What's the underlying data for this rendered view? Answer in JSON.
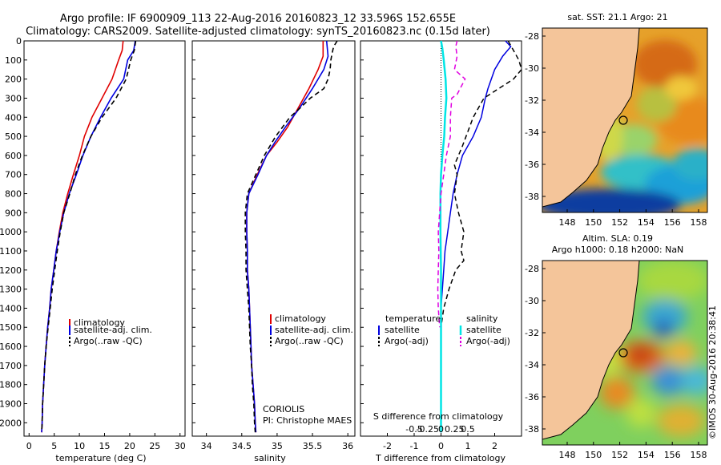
{
  "header": {
    "line1": "Argo profile: IF 6900909_113 22-Aug-2016 20160823_12 33.596S 152.655E",
    "line2": "Climatology: CARS2009. Satellite-adjusted climatology: synTS_20160823.nc (0.15d later)"
  },
  "depth_ticks": [
    "0",
    "100",
    "200",
    "300",
    "400",
    "500",
    "600",
    "700",
    "800",
    "900",
    "1000",
    "1100",
    "1200",
    "1300",
    "1400",
    "1500",
    "1600",
    "1700",
    "1800",
    "1900",
    "2000"
  ],
  "colors": {
    "climatology": "#e00000",
    "satellite": "#0000e0",
    "argo": "#000000",
    "sat_salinity": "#00e5e5",
    "argo_salinity": "#e000e0",
    "land": "#f4c59a"
  },
  "panels": {
    "temperature": {
      "xlabel": "temperature (deg C)",
      "xticks": [
        "0",
        "5",
        "10",
        "15",
        "20",
        "25",
        "30"
      ],
      "legend": [
        "climatology",
        "satellite-adj. clim.",
        "Argo(..raw -QC)"
      ]
    },
    "salinity": {
      "xlabel": "salinity",
      "xticks": [
        "34",
        "34.5",
        "35",
        "35.5",
        "36"
      ],
      "legend": [
        "climatology",
        "satellite-adj. clim.",
        "Argo(..raw -QC)"
      ],
      "note1": "CORIOLIS",
      "note2": "PI: Christophe MAES"
    },
    "difference": {
      "xlabel": "T difference from climatology",
      "xticks": [
        "-2",
        "-1",
        "0",
        "1",
        "2"
      ],
      "top_label": "S difference from climatology",
      "top_ticks": [
        "-0.5",
        "-0.25",
        "0",
        "0.25",
        "0.5"
      ],
      "leg_temp_head": "temperature",
      "leg_sal_head": "salinity",
      "leg_temp": [
        "satellite",
        "Argo(-adj)"
      ],
      "leg_sal": [
        "satellite",
        "Argo(-adj)"
      ]
    }
  },
  "maps": {
    "sst_title": "sat. SST: 21.1  Argo: 21",
    "sla_title1": "Altim. SLA: 0.19",
    "sla_title2": "Argo h1000: 0.18  h2000: NaN",
    "lat_ticks": [
      "-28",
      "-30",
      "-32",
      "-34",
      "-36",
      "-38"
    ],
    "lon_ticks": [
      "148",
      "150",
      "152",
      "154",
      "156",
      "158"
    ],
    "credit": "©IMOS 30-Aug-2016 20:38:41"
  },
  "chart_data": [
    {
      "type": "line",
      "title": "",
      "xlabel": "temperature (deg C)",
      "ylabel": "",
      "xlim": [
        -1,
        31
      ],
      "ylim": [
        2070,
        0
      ],
      "y_inverted": true,
      "series": [
        {
          "name": "climatology",
          "color": "#e00000",
          "dash": "",
          "points": [
            [
              18.7,
              0
            ],
            [
              18.5,
              50
            ],
            [
              17.8,
              100
            ],
            [
              16.5,
              200
            ],
            [
              14.5,
              300
            ],
            [
              12.5,
              400
            ],
            [
              11,
              500
            ],
            [
              10,
              600
            ],
            [
              8.8,
              700
            ],
            [
              7.7,
              800
            ],
            [
              6.7,
              900
            ],
            [
              6,
              1000
            ],
            [
              5.4,
              1100
            ],
            [
              4.9,
              1200
            ],
            [
              4.4,
              1300
            ],
            [
              4.1,
              1400
            ],
            [
              3.7,
              1500
            ],
            [
              3.4,
              1600
            ],
            [
              3.1,
              1700
            ],
            [
              2.9,
              1800
            ],
            [
              2.7,
              1900
            ],
            [
              2.6,
              2000
            ],
            [
              2.5,
              2050
            ]
          ]
        },
        {
          "name": "satellite-adj. clim.",
          "color": "#0000e0",
          "dash": "",
          "points": [
            [
              21.1,
              0
            ],
            [
              20.8,
              50
            ],
            [
              19.6,
              100
            ],
            [
              18.8,
              200
            ],
            [
              16.3,
              300
            ],
            [
              14.2,
              400
            ],
            [
              12.3,
              500
            ],
            [
              10.7,
              600
            ],
            [
              9.4,
              700
            ],
            [
              8,
              800
            ],
            [
              6.9,
              900
            ],
            [
              6.1,
              1000
            ],
            [
              5.4,
              1100
            ],
            [
              4.9,
              1200
            ],
            [
              4.4,
              1300
            ],
            [
              4.1,
              1400
            ],
            [
              3.7,
              1500
            ],
            [
              3.4,
              1600
            ],
            [
              3.1,
              1700
            ],
            [
              2.9,
              1800
            ],
            [
              2.7,
              1900
            ],
            [
              2.6,
              2000
            ],
            [
              2.5,
              2050
            ]
          ]
        },
        {
          "name": "Argo(..raw -QC)",
          "color": "#000000",
          "dash": "6,4",
          "points": [
            [
              21.2,
              0
            ],
            [
              20.9,
              50
            ],
            [
              20.2,
              100
            ],
            [
              19.3,
              200
            ],
            [
              17.3,
              300
            ],
            [
              14.5,
              400
            ],
            [
              12.3,
              500
            ],
            [
              10.6,
              600
            ],
            [
              9.2,
              700
            ],
            [
              8.1,
              800
            ],
            [
              6.9,
              900
            ],
            [
              6.2,
              1000
            ],
            [
              5.6,
              1100
            ],
            [
              5.1,
              1200
            ],
            [
              4.6,
              1300
            ],
            [
              4.2,
              1400
            ],
            [
              3.8,
              1500
            ],
            [
              3.4,
              1600
            ],
            [
              3.1,
              1700
            ],
            [
              2.9,
              1800
            ],
            [
              2.7,
              1900
            ],
            [
              2.6,
              2000
            ],
            [
              2.5,
              2050
            ]
          ]
        }
      ]
    },
    {
      "type": "line",
      "title": "",
      "xlabel": "salinity",
      "ylabel": "",
      "xlim": [
        33.8,
        36.1
      ],
      "ylim": [
        2070,
        0
      ],
      "y_inverted": true,
      "series": [
        {
          "name": "climatology",
          "color": "#e00000",
          "dash": "",
          "points": [
            [
              35.65,
              0
            ],
            [
              35.65,
              80
            ],
            [
              35.58,
              150
            ],
            [
              35.45,
              250
            ],
            [
              35.3,
              350
            ],
            [
              35.15,
              450
            ],
            [
              35,
              530
            ],
            [
              34.85,
              600
            ],
            [
              34.72,
              700
            ],
            [
              34.6,
              800
            ],
            [
              34.57,
              900
            ],
            [
              34.57,
              1000
            ],
            [
              34.58,
              1100
            ],
            [
              34.58,
              1200
            ],
            [
              34.6,
              1300
            ],
            [
              34.61,
              1400
            ],
            [
              34.62,
              1500
            ],
            [
              34.63,
              1600
            ],
            [
              34.64,
              1700
            ],
            [
              34.66,
              1800
            ],
            [
              34.68,
              1900
            ],
            [
              34.69,
              2000
            ],
            [
              34.7,
              2050
            ]
          ]
        },
        {
          "name": "satellite-adj. clim.",
          "color": "#0000e0",
          "dash": "",
          "points": [
            [
              35.7,
              0
            ],
            [
              35.72,
              80
            ],
            [
              35.66,
              150
            ],
            [
              35.5,
              250
            ],
            [
              35.32,
              350
            ],
            [
              35.12,
              450
            ],
            [
              34.97,
              530
            ],
            [
              34.85,
              600
            ],
            [
              34.73,
              700
            ],
            [
              34.6,
              800
            ],
            [
              34.57,
              900
            ],
            [
              34.57,
              1000
            ],
            [
              34.58,
              1100
            ],
            [
              34.58,
              1200
            ],
            [
              34.6,
              1300
            ],
            [
              34.61,
              1400
            ],
            [
              34.62,
              1500
            ],
            [
              34.63,
              1600
            ],
            [
              34.64,
              1700
            ],
            [
              34.66,
              1800
            ],
            [
              34.68,
              1900
            ],
            [
              34.69,
              2000
            ],
            [
              34.7,
              2050
            ]
          ]
        },
        {
          "name": "Argo(..raw -QC)",
          "color": "#000000",
          "dash": "6,4",
          "points": [
            [
              35.85,
              0
            ],
            [
              35.8,
              30
            ],
            [
              35.78,
              60
            ],
            [
              35.76,
              100
            ],
            [
              35.75,
              150
            ],
            [
              35.72,
              200
            ],
            [
              35.66,
              250
            ],
            [
              35.47,
              300
            ],
            [
              35.33,
              350
            ],
            [
              35.18,
              400
            ],
            [
              34.98,
              500
            ],
            [
              34.82,
              600
            ],
            [
              34.7,
              700
            ],
            [
              34.58,
              800
            ],
            [
              34.55,
              900
            ],
            [
              34.55,
              1000
            ],
            [
              34.56,
              1100
            ],
            [
              34.56,
              1200
            ],
            [
              34.58,
              1300
            ],
            [
              34.6,
              1400
            ],
            [
              34.61,
              1500
            ],
            [
              34.62,
              1600
            ],
            [
              34.64,
              1700
            ],
            [
              34.65,
              1800
            ],
            [
              34.67,
              1900
            ],
            [
              34.68,
              2000
            ],
            [
              34.69,
              2050
            ]
          ]
        }
      ]
    },
    {
      "type": "line",
      "title": "",
      "xlabel": "T difference from climatology",
      "ylabel": "",
      "xlim": [
        -3,
        3
      ],
      "ylim": [
        2070,
        0
      ],
      "y_inverted": true,
      "series": [
        {
          "name": "T satellite",
          "color": "#0000e0",
          "dash": "",
          "width": 1.5,
          "points": [
            [
              2.4,
              0
            ],
            [
              2.6,
              30
            ],
            [
              2.3,
              80
            ],
            [
              2,
              150
            ],
            [
              1.75,
              250
            ],
            [
              1.65,
              300
            ],
            [
              1.5,
              400
            ],
            [
              1.2,
              500
            ],
            [
              0.8,
              600
            ],
            [
              0.6,
              700
            ],
            [
              0.45,
              800
            ],
            [
              0.35,
              900
            ],
            [
              0.25,
              1000
            ],
            [
              0.15,
              1100
            ],
            [
              0.1,
              1200
            ],
            [
              0.05,
              1300
            ],
            [
              0,
              1400
            ],
            [
              0,
              2050
            ]
          ]
        },
        {
          "name": "T Argo(-adj)",
          "color": "#000000",
          "dash": "6,4",
          "width": 1.5,
          "points": [
            [
              2.5,
              0
            ],
            [
              2.7,
              50
            ],
            [
              2.9,
              100
            ],
            [
              3,
              150
            ],
            [
              2.7,
              200
            ],
            [
              1.6,
              300
            ],
            [
              1.2,
              400
            ],
            [
              0.8,
              550
            ],
            [
              0.5,
              650
            ],
            [
              0.6,
              700
            ],
            [
              0.5,
              800
            ],
            [
              0.65,
              900
            ],
            [
              0.85,
              1000
            ],
            [
              0.75,
              1100
            ],
            [
              0.85,
              1150
            ],
            [
              0.55,
              1200
            ],
            [
              0.3,
              1300
            ],
            [
              0.1,
              1400
            ],
            [
              0,
              1500
            ],
            [
              0,
              2050
            ]
          ]
        },
        {
          "name": "S satellite",
          "color": "#00e5e5",
          "dash": "",
          "width": 2.5,
          "points": [
            [
              0,
              0
            ],
            [
              0.05,
              40
            ],
            [
              0.1,
              100
            ],
            [
              0.17,
              200
            ],
            [
              0.2,
              300
            ],
            [
              0.15,
              400
            ],
            [
              0.12,
              500
            ],
            [
              0.05,
              600
            ],
            [
              0,
              700
            ],
            [
              -0.02,
              800
            ],
            [
              -0.02,
              1000
            ],
            [
              0,
              1200
            ],
            [
              0,
              2050
            ]
          ]
        },
        {
          "name": "S Argo(-adj)",
          "color": "#e000e0",
          "dash": "6,4",
          "width": 1.5,
          "points": [
            [
              0.6,
              0
            ],
            [
              0.55,
              30
            ],
            [
              0.6,
              80
            ],
            [
              0.5,
              150
            ],
            [
              0.9,
              200
            ],
            [
              0.6,
              280
            ],
            [
              0.4,
              300
            ],
            [
              0.35,
              400
            ],
            [
              0.35,
              500
            ],
            [
              0.2,
              600
            ],
            [
              0.1,
              700
            ],
            [
              0,
              800
            ],
            [
              -0.05,
              900
            ],
            [
              -0.1,
              1000
            ],
            [
              -0.08,
              1100
            ],
            [
              -0.1,
              1200
            ],
            [
              -0.12,
              1300
            ],
            [
              -0.1,
              1400
            ],
            [
              -0.05,
              1500
            ]
          ]
        }
      ]
    }
  ]
}
